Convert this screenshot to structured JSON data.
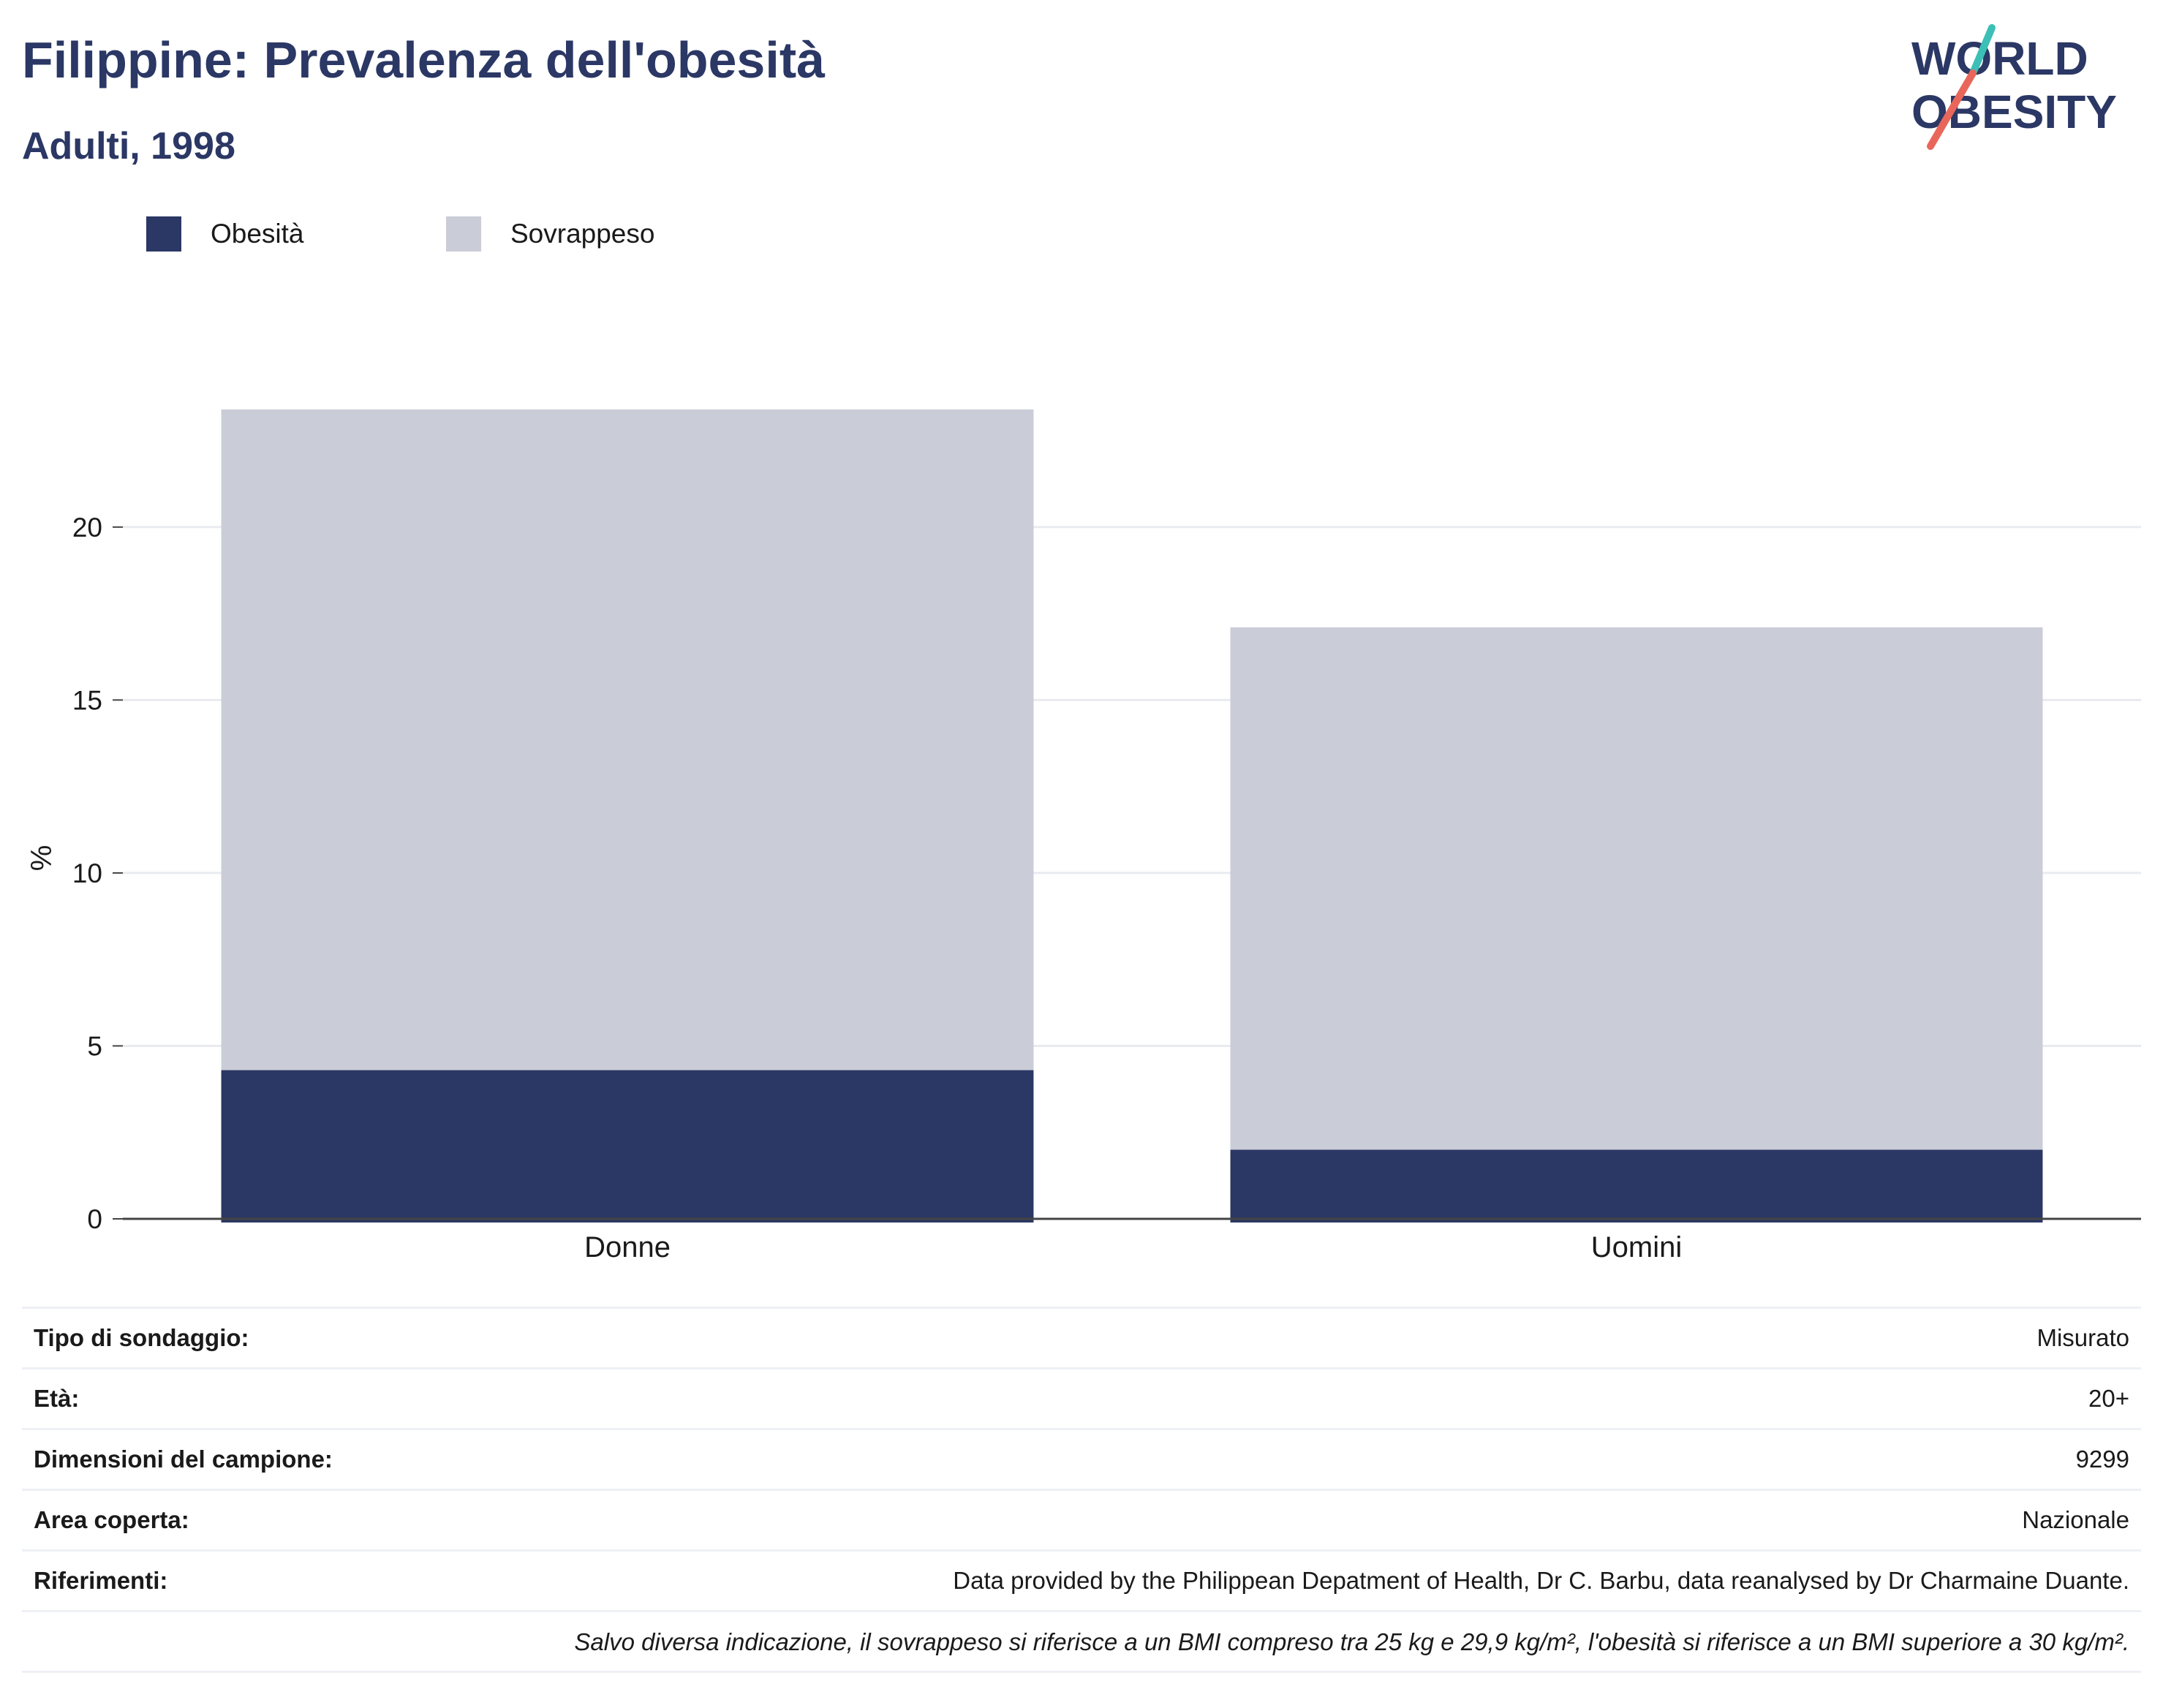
{
  "header": {
    "title": "Filippine: Prevalenza dell'obesità",
    "subtitle": "Adulti, 1998"
  },
  "logo": {
    "line1": "WORLD",
    "line2": "OBESITY",
    "colors": {
      "text": "#2b3764",
      "stroke_top": "#3bbfb6",
      "stroke_bottom": "#e8675a"
    }
  },
  "legend": {
    "items": [
      {
        "label": "Obesità",
        "color": "#2b3764"
      },
      {
        "label": "Sovrappeso",
        "color": "#cacdd8"
      }
    ]
  },
  "chart_data": {
    "type": "bar",
    "stacked": true,
    "categories": [
      "Donne",
      "Uomini"
    ],
    "series": [
      {
        "name": "Obesità",
        "color": "#2b3764",
        "values": [
          4.3,
          2.0
        ]
      },
      {
        "name": "Sovrappeso",
        "color": "#cacdd8",
        "values": [
          19.1,
          15.1
        ]
      }
    ],
    "ylabel": "%",
    "xlabel": "",
    "ylim": [
      0,
      23.4
    ],
    "yticks": [
      0,
      5,
      10,
      15,
      20
    ],
    "grid": true,
    "legend_position": "top-left"
  },
  "info": {
    "rows": [
      {
        "key": "Tipo di sondaggio:",
        "value": "Misurato"
      },
      {
        "key": "Età:",
        "value": "20+"
      },
      {
        "key": "Dimensioni del campione:",
        "value": "9299"
      },
      {
        "key": "Area coperta:",
        "value": "Nazionale"
      },
      {
        "key": "Riferimenti:",
        "value": "Data provided by the Philippean Depatment of Health, Dr C. Barbu, data reanalysed by Dr Charmaine Duante."
      }
    ],
    "note": "Salvo diversa indicazione, il sovrappeso si riferisce a un BMI compreso tra 25 kg e 29,9 kg/m², l'obesità si riferisce a un BMI superiore a 30 kg/m²."
  }
}
